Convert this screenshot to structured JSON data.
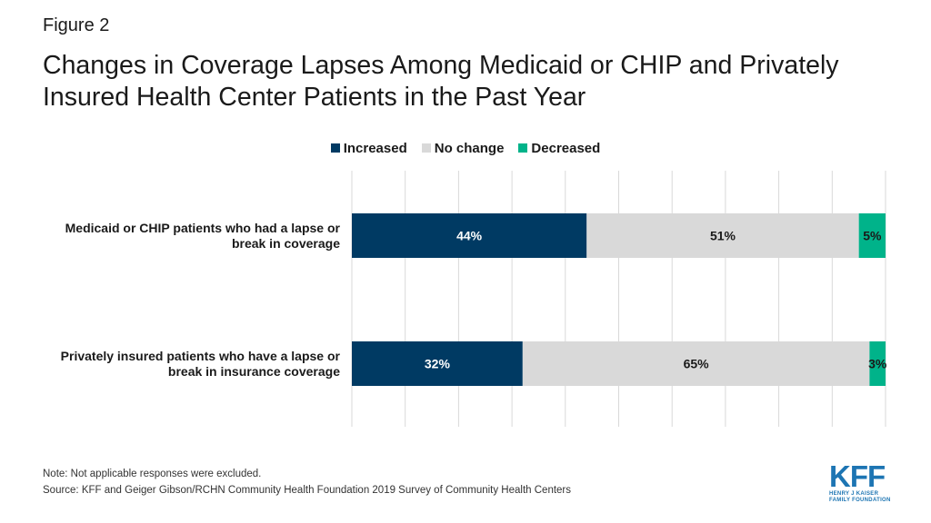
{
  "figure_label": "Figure 2",
  "title": "Changes in Coverage Lapses Among Medicaid or CHIP and Privately Insured Health Center Patients in the Past Year",
  "note": "Note: Not applicable responses were excluded.",
  "source": "Source: KFF and Geiger Gibson/RCHN Community Health Foundation 2019 Survey of Community Health Centers",
  "logo": {
    "mark": "KFF",
    "line1": "HENRY J KAISER",
    "line2": "FAMILY FOUNDATION"
  },
  "colors": {
    "increased": "#003a63",
    "no_change": "#d9d9d9",
    "decreased": "#00b38a",
    "gridline": "#d9d9d9",
    "logo": "#1d75b3"
  },
  "chart_data": {
    "type": "bar",
    "orientation": "horizontal",
    "stacked": true,
    "title": "Changes in Coverage Lapses Among Medicaid or CHIP and Privately Insured Health Center Patients in the Past Year",
    "categories": [
      "Medicaid or CHIP patients who had a lapse or break in coverage",
      "Privately insured patients who have a lapse or break in insurance coverage"
    ],
    "series": [
      {
        "name": "Increased",
        "values": [
          44,
          32
        ],
        "labels": [
          "44%",
          "32%"
        ],
        "color": "#003a63"
      },
      {
        "name": "No change",
        "values": [
          51,
          65
        ],
        "labels": [
          "51%",
          "65%"
        ],
        "color": "#d9d9d9"
      },
      {
        "name": "Decreased",
        "values": [
          5,
          3
        ],
        "labels": [
          "5%",
          "3%"
        ],
        "color": "#00b38a"
      }
    ],
    "xlim": [
      0,
      100
    ],
    "grid": true,
    "legend_position": "top-center",
    "xlabel": "",
    "ylabel": ""
  }
}
